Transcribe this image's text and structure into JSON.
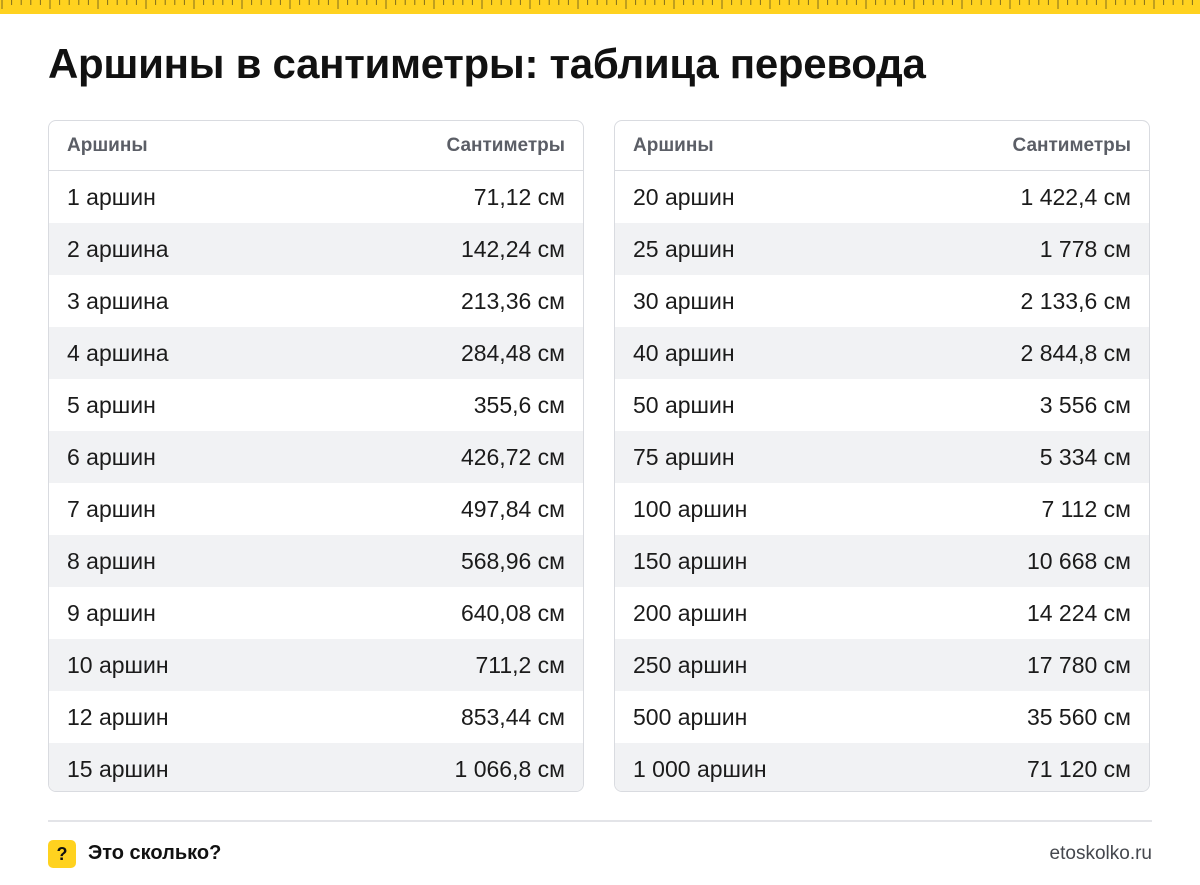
{
  "title": "Аршины в сантиметры: таблица перевода",
  "colors": {
    "accent": "#ffd21f",
    "border": "#d9dbe0",
    "zebra": "#f1f2f4"
  },
  "tables": [
    {
      "headers": {
        "left": "Аршины",
        "right": "Сантиметры"
      },
      "rows": [
        {
          "a": "1 аршин",
          "cm": "71,12 см"
        },
        {
          "a": "2 аршина",
          "cm": "142,24 см"
        },
        {
          "a": "3 аршина",
          "cm": "213,36 см"
        },
        {
          "a": "4 аршина",
          "cm": "284,48 см"
        },
        {
          "a": "5 аршин",
          "cm": "355,6 см"
        },
        {
          "a": "6 аршин",
          "cm": "426,72 см"
        },
        {
          "a": "7 аршин",
          "cm": "497,84 см"
        },
        {
          "a": "8 аршин",
          "cm": "568,96 см"
        },
        {
          "a": "9 аршин",
          "cm": "640,08 см"
        },
        {
          "a": "10 аршин",
          "cm": "711,2 см"
        },
        {
          "a": "12 аршин",
          "cm": "853,44 см"
        },
        {
          "a": "15 аршин",
          "cm": "1 066,8 см"
        }
      ]
    },
    {
      "headers": {
        "left": "Аршины",
        "right": "Сантиметры"
      },
      "rows": [
        {
          "a": "20 аршин",
          "cm": "1 422,4 см"
        },
        {
          "a": "25 аршин",
          "cm": "1 778 см"
        },
        {
          "a": "30 аршин",
          "cm": "2 133,6 см"
        },
        {
          "a": "40 аршин",
          "cm": "2 844,8 см"
        },
        {
          "a": "50 аршин",
          "cm": "3 556 см"
        },
        {
          "a": "75 аршин",
          "cm": "5 334 см"
        },
        {
          "a": "100 аршин",
          "cm": "7 112 см"
        },
        {
          "a": "150 аршин",
          "cm": "10 668 см"
        },
        {
          "a": "200 аршин",
          "cm": "14 224 см"
        },
        {
          "a": "250 аршин",
          "cm": "17 780 см"
        },
        {
          "a": "500 аршин",
          "cm": "35 560 см"
        },
        {
          "a": "1 000 аршин",
          "cm": "71 120 см"
        }
      ]
    }
  ],
  "footer": {
    "badge_icon": "?",
    "brand": "Это сколько?",
    "site": "etoskolko.ru"
  }
}
